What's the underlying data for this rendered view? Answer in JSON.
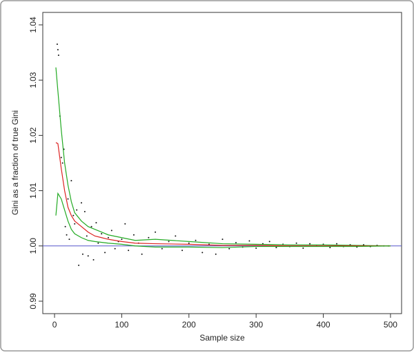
{
  "chart_data": {
    "type": "scatter",
    "xlabel": "Sample size",
    "ylabel": "Gini as a fraction of true Gini",
    "xlim": [
      -17.5,
      516.5
    ],
    "ylim": [
      0.98775,
      1.04225
    ],
    "xticks": [
      0,
      100,
      200,
      300,
      400,
      500
    ],
    "yticks": [
      0.99,
      {
        "value": 1,
        "label": "1.00"
      },
      1.01,
      1.02,
      1.03,
      1.04
    ],
    "hline": 1,
    "hline_color": "#5555cc",
    "series": [
      {
        "style": "points",
        "color": "#111111",
        "x": [
          4,
          5,
          6,
          8,
          10,
          12,
          14,
          16,
          18,
          20,
          22,
          25,
          28,
          30,
          33,
          36,
          40,
          42,
          45,
          48,
          50,
          55,
          58,
          62,
          65,
          70,
          75,
          80,
          85,
          90,
          95,
          100,
          105,
          110,
          118,
          125,
          130,
          140,
          150,
          160,
          170,
          180,
          190,
          200,
          210,
          220,
          230,
          240,
          250,
          260,
          270,
          280,
          290,
          300,
          310,
          320,
          330,
          340,
          350,
          360,
          370,
          380,
          390,
          400,
          410,
          420,
          430,
          440,
          450,
          460,
          470,
          480,
          490,
          497
        ],
        "values": [
          1.0365,
          1.0355,
          1.0345,
          1.0235,
          1.016,
          1.015,
          1.0175,
          1.0035,
          1.002,
          1.0085,
          1.0012,
          1.0118,
          1.0055,
          1.004,
          1.0065,
          0.9965,
          1.0078,
          0.9985,
          1.0062,
          1.0018,
          0.9982,
          1.0035,
          0.9975,
          1.0042,
          1.0005,
          1.0022,
          0.9988,
          1.0015,
          1.0028,
          0.9995,
          1.0008,
          1.0012,
          1.004,
          0.9992,
          1.002,
          1.0005,
          0.9985,
          1.0015,
          1.0025,
          0.9995,
          1.0008,
          1.0018,
          0.9992,
          1.0005,
          1.001,
          0.9988,
          1.0003,
          0.9985,
          1.0012,
          0.9995,
          1.0006,
          0.9998,
          1.0009,
          0.9996,
          1.0004,
          1.0008,
          0.9997,
          1.0003,
          0.9999,
          1.0005,
          0.9996,
          1.0004,
          1.0,
          1.0003,
          0.9997,
          1.0004,
          0.9999,
          1.0002,
          0.9998,
          1.0002,
          0.9999,
          1.0001,
          1.0,
          1.0
        ]
      },
      {
        "style": "line",
        "color": "#22aa22",
        "x": [
          2,
          5,
          10,
          15,
          20,
          25,
          30,
          40,
          50,
          60,
          70,
          80,
          100,
          120,
          150,
          200,
          250,
          300,
          350,
          400,
          450,
          500
        ],
        "values": [
          1.0323,
          1.028,
          1.021,
          1.015,
          1.011,
          1.008,
          1.006,
          1.0045,
          1.0035,
          1.003,
          1.0025,
          1.002,
          1.0015,
          1.001,
          1.0012,
          1.0008,
          1.0004,
          1.0003,
          1.0002,
          1.0002,
          1.0001,
          1.0
        ]
      },
      {
        "style": "line",
        "color": "#dd2222",
        "x": [
          2,
          5,
          10,
          15,
          20,
          25,
          30,
          40,
          50,
          60,
          70,
          80,
          90,
          100,
          120,
          150,
          200,
          250,
          300,
          350,
          400,
          450,
          500
        ],
        "values": [
          1.0187,
          1.0185,
          1.014,
          1.01,
          1.007,
          1.0055,
          1.0045,
          1.0035,
          1.0025,
          1.0018,
          1.0015,
          1.0012,
          1.001,
          1.0008,
          1.0005,
          1.0004,
          1.0003,
          1.0001,
          1.0001,
          1.0,
          1.0,
          1.0,
          1.0
        ]
      },
      {
        "style": "line",
        "color": "#22aa22",
        "x": [
          2,
          5,
          10,
          15,
          20,
          25,
          30,
          40,
          50,
          60,
          80,
          100,
          120,
          150,
          200,
          250,
          300,
          350,
          400,
          450,
          500
        ],
        "values": [
          1.0055,
          1.0095,
          1.0085,
          1.0065,
          1.0045,
          1.003,
          1.0022,
          1.0015,
          1.001,
          1.0008,
          1.0005,
          1.0003,
          1.0,
          0.9998,
          0.9998,
          0.9997,
          0.9999,
          0.9999,
          0.9999,
          0.9999,
          1.0
        ]
      }
    ]
  }
}
